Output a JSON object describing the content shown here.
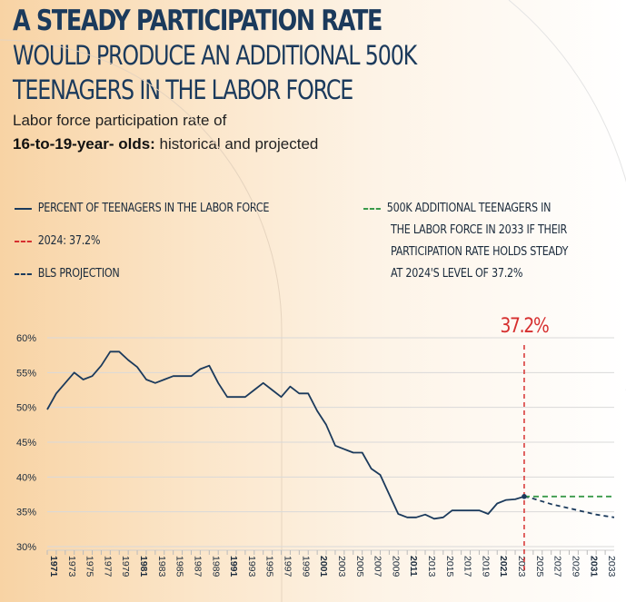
{
  "header": {
    "title_line1": "A STEADY PARTICIPATION RATE",
    "title_line2": "WOULD PRODUCE AN ADDITIONAL 500K",
    "title_line3": "TEENAGERS IN THE LABOR FORCE",
    "subtitle_line1": "Labor force participation rate of",
    "subtitle_bold": "16-to-19-year- olds:",
    "subtitle_rest": " historical and projected"
  },
  "legend": {
    "historical": "PERCENT OF TEENAGERS IN THE LABOR FORCE",
    "marker_2024": "2024: 37.2%",
    "bls": "BLS PROJECTION",
    "steady_lines": [
      "500K ADDITIONAL TEENAGERS IN",
      "THE LABOR FORCE IN 2033 IF THEIR",
      "PARTICIPATION RATE HOLDS STEADY",
      "AT 2024'S LEVEL OF 37.2%"
    ]
  },
  "colors": {
    "navy": "#1b3a5c",
    "red": "#d62f2f",
    "green": "#3a9a4a",
    "grid": "#d9d9d9"
  },
  "chart_data": {
    "type": "line",
    "ylim": [
      30,
      60
    ],
    "yticks": [
      "60%",
      "55%",
      "50%",
      "45%",
      "40%",
      "35%",
      "30%"
    ],
    "ytick_values": [
      60,
      55,
      50,
      45,
      40,
      35,
      30
    ],
    "xlim": [
      1971,
      2034
    ],
    "xticks": [
      "1971",
      "1973",
      "1975",
      "1977",
      "1979",
      "1981",
      "1983",
      "1985",
      "1987",
      "1989",
      "1991",
      "1993",
      "1995",
      "1997",
      "1999",
      "2001",
      "2003",
      "2005",
      "2007",
      "2009",
      "2011",
      "2013",
      "2015",
      "2017",
      "2019",
      "2021",
      "2023",
      "2025",
      "2027",
      "2029",
      "2031",
      "2033"
    ],
    "xtick_bold": [
      "1971",
      "1981",
      "1991",
      "2001",
      "2011",
      "2021",
      "2031"
    ],
    "annotation": "37.2%",
    "marker_year": 2024,
    "series": [
      {
        "key": "historical",
        "x": [
          1971,
          1972,
          1973,
          1974,
          1975,
          1976,
          1977,
          1978,
          1979,
          1980,
          1981,
          1982,
          1983,
          1984,
          1985,
          1986,
          1987,
          1988,
          1989,
          1990,
          1991,
          1992,
          1993,
          1994,
          1995,
          1996,
          1997,
          1998,
          1999,
          2000,
          2001,
          2002,
          2003,
          2004,
          2005,
          2006,
          2007,
          2008,
          2009,
          2010,
          2011,
          2012,
          2013,
          2014,
          2015,
          2016,
          2017,
          2018,
          2019,
          2020,
          2021,
          2022,
          2023,
          2024
        ],
        "y": [
          49.7,
          52.0,
          53.5,
          55.0,
          54.0,
          54.5,
          56.0,
          58.0,
          58.0,
          56.8,
          55.8,
          54.0,
          53.5,
          54.0,
          54.5,
          54.5,
          54.5,
          55.5,
          56.0,
          53.5,
          51.5,
          51.5,
          51.5,
          52.5,
          53.5,
          52.5,
          51.5,
          53.0,
          52.0,
          52.0,
          49.5,
          47.5,
          44.5,
          44.0,
          43.5,
          43.5,
          41.2,
          40.3,
          37.5,
          34.7,
          34.2,
          34.2,
          34.6,
          34.0,
          34.2,
          35.2,
          35.2,
          35.2,
          35.2,
          34.7,
          36.2,
          36.7,
          36.8,
          37.2
        ]
      },
      {
        "key": "bls",
        "x": [
          2024,
          2025,
          2026,
          2027,
          2028,
          2029,
          2030,
          2031,
          2032,
          2033,
          2034
        ],
        "y": [
          37.2,
          36.9,
          36.5,
          36.1,
          35.8,
          35.5,
          35.2,
          34.9,
          34.6,
          34.4,
          34.2
        ]
      },
      {
        "key": "steady",
        "x": [
          2024,
          2034
        ],
        "y": [
          37.2,
          37.2
        ]
      }
    ]
  }
}
